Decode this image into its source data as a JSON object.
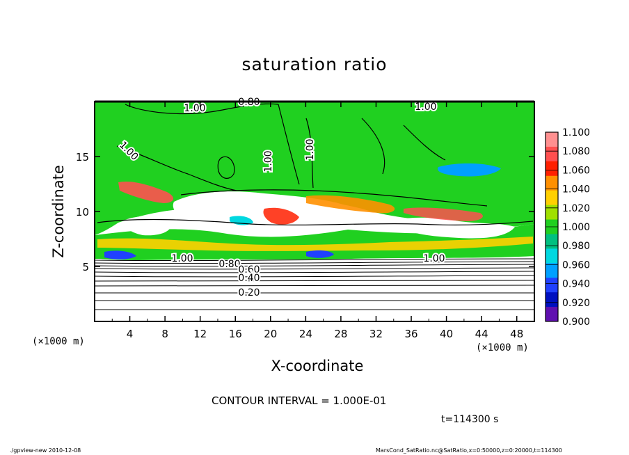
{
  "chart_data": {
    "type": "heatmap",
    "title": "saturation ratio",
    "xlabel": "X-coordinate",
    "ylabel": "Z-coordinate",
    "x_unit": "(×1000 m)",
    "y_unit": "(×1000 m)",
    "xlim": [
      0,
      50
    ],
    "ylim": [
      0,
      20
    ],
    "x_ticks": [
      4,
      8,
      12,
      16,
      20,
      24,
      28,
      32,
      36,
      40,
      44,
      48
    ],
    "y_ticks": [
      5,
      10,
      15
    ],
    "colorbar": {
      "levels": [
        "1.100",
        "1.080",
        "1.060",
        "1.040",
        "1.020",
        "1.000",
        "0.980",
        "0.960",
        "0.940",
        "0.920",
        "0.900"
      ],
      "colors": [
        "#ff9090",
        "#ff5050",
        "#ff2000",
        "#ff9000",
        "#ffd000",
        "#a0e000",
        "#20d020",
        "#00c080",
        "#00d8e0",
        "#00a0ff",
        "#2040ff",
        "#0010c0",
        "#6010b0"
      ]
    },
    "contour_labels": [
      "1.00",
      "0.80",
      "0.60",
      "0.40",
      "0.20"
    ],
    "contour_interval_text": "CONTOUR INTERVAL = 1.000E-01",
    "time_text": "t=114300 s"
  },
  "footer": {
    "left": "./gpview-new   2010-12-08",
    "right": "MarsCond_SatRatio.nc@SatRatio,x=0:50000,z=0:20000,t=114300"
  }
}
